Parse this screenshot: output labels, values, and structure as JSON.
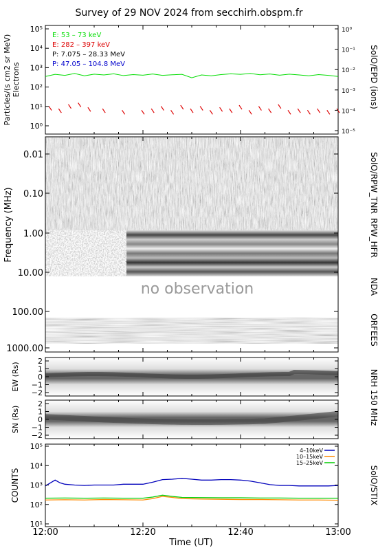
{
  "title": "Survey of 29 NOV 2024 from secchirh.obspm.fr",
  "xaxis": {
    "label": "Time (UT)",
    "ticks": [
      "12:00",
      "12:20",
      "12:40",
      "13:00"
    ],
    "range_minutes": [
      0,
      60
    ]
  },
  "panels": {
    "epd": {
      "left_label_1": "Particles/(s cm2 sr MeV)",
      "left_label_2": "Electrons",
      "right_label": "SolO/EPD (ions)",
      "left_ticks": [
        "10⁰",
        "10¹",
        "10²",
        "10³",
        "10⁴",
        "10⁵"
      ],
      "right_ticks": [
        "10⁻⁵",
        "10⁻⁴",
        "10⁻³",
        "10⁻²",
        "10⁻¹",
        "10⁰"
      ],
      "legend": [
        {
          "text": "E: 53 – 73 keV",
          "color": "#00dd00"
        },
        {
          "text": "E: 282 – 397 keV",
          "color": "#dd0000"
        },
        {
          "text": "P: 7.075 – 28.33 MeV",
          "color": "#000000"
        },
        {
          "text": "P: 47.05 – 104.8 MeV",
          "color": "#0000cc"
        }
      ]
    },
    "spectrogram": {
      "ylabel": "Frequency (MHz)",
      "yticks": [
        "0.01",
        "0.10",
        "1.00",
        "10.00",
        "100.00",
        "1000.00"
      ],
      "instruments": [
        "SolO/RPW_TNR",
        "RPW_HFR",
        "NDA",
        "ORFEES"
      ],
      "no_obs_text": "no observation"
    },
    "nrh": {
      "ew_label": "EW (Rs)",
      "sn_label": "SN (Rs)",
      "yticks": [
        "2",
        "1",
        "0",
        "−1",
        "−2"
      ],
      "right_label": "NRH 150 MHz"
    },
    "stix": {
      "ylabel": "COUNTS",
      "right_label": "SolO/STIX",
      "yticks": [
        "10¹",
        "10²",
        "10³",
        "10⁴",
        "10⁵"
      ],
      "legend": [
        {
          "text": "4–10keV",
          "color": "#0000bb"
        },
        {
          "text": "10–15keV",
          "color": "#ff8800"
        },
        {
          "text": "15–25keV",
          "color": "#00cc00"
        }
      ]
    }
  },
  "chart_data": [
    {
      "type": "line",
      "panel": "SolO/EPD",
      "x_unit": "minutes after 12:00 UT",
      "y_scale": "log",
      "ylim": [
        0.5,
        100000
      ],
      "series": [
        {
          "name": "E: 53 – 73 keV",
          "color": "#00dd00",
          "x": [
            0,
            2,
            4,
            6,
            8,
            10,
            12,
            14,
            16,
            18,
            20,
            22,
            24,
            26,
            28,
            30,
            32,
            34,
            36,
            38,
            40,
            42,
            44,
            46,
            48,
            50,
            52,
            54,
            56,
            58,
            60
          ],
          "y": [
            350,
            450,
            400,
            500,
            380,
            460,
            420,
            480,
            390,
            440,
            410,
            470,
            400,
            430,
            450,
            300,
            420,
            380,
            440,
            480,
            450,
            500,
            430,
            470,
            410,
            460,
            420,
            380,
            440,
            400,
            350
          ]
        },
        {
          "name": "E: 282 – 397 keV",
          "color": "#dd0000",
          "x": [
            1,
            3,
            5,
            7,
            9,
            12,
            16,
            20,
            22,
            24,
            26,
            28,
            30,
            32,
            34,
            36,
            38,
            40,
            42,
            44,
            46,
            48,
            50,
            52,
            54,
            56,
            58,
            60
          ],
          "y": [
            8,
            6,
            10,
            12,
            7,
            6,
            5,
            5,
            6,
            8,
            5,
            9,
            6,
            8,
            5,
            7,
            6,
            9,
            5,
            8,
            6,
            10,
            5,
            6,
            5,
            6,
            5,
            6
          ]
        }
      ]
    },
    {
      "type": "heatmap",
      "panel": "Radio spectrogram",
      "y_scale": "log",
      "ylim_MHz": [
        0.004,
        1000
      ],
      "rows": [
        {
          "instrument": "SolO/RPW_TNR",
          "MHz_range": [
            0.004,
            1
          ]
        },
        {
          "instrument": "RPW_HFR",
          "MHz_range": [
            1,
            10
          ]
        },
        {
          "instrument": "NDA",
          "MHz_range": [
            10,
            60
          ],
          "note": "no observation"
        },
        {
          "instrument": "ORFEES",
          "MHz_range": [
            140,
            1000
          ]
        }
      ]
    },
    {
      "type": "line",
      "panel": "STIX",
      "x_unit": "minutes after 12:00 UT",
      "y_scale": "log",
      "ylim": [
        10,
        100000
      ],
      "series": [
        {
          "name": "4–10keV",
          "color": "#0000bb",
          "x": [
            0,
            2,
            3,
            4,
            6,
            8,
            10,
            12,
            14,
            16,
            18,
            20,
            22,
            24,
            26,
            28,
            30,
            32,
            34,
            36,
            38,
            40,
            42,
            44,
            46,
            48,
            50,
            52,
            54,
            56,
            58,
            60
          ],
          "y": [
            900,
            1800,
            1300,
            1100,
            1000,
            950,
            1000,
            1000,
            1000,
            1100,
            1100,
            1100,
            1400,
            1900,
            2000,
            2200,
            2000,
            1800,
            1800,
            1900,
            1900,
            1800,
            1600,
            1300,
            1050,
            950,
            950,
            900,
            900,
            900,
            900,
            950
          ]
        },
        {
          "name": "10–15keV",
          "color": "#ff8800",
          "x": [
            0,
            4,
            8,
            12,
            16,
            20,
            22,
            24,
            26,
            28,
            32,
            36,
            40,
            44,
            48,
            52,
            56,
            60
          ],
          "y": [
            170,
            175,
            170,
            180,
            175,
            170,
            200,
            260,
            230,
            200,
            190,
            185,
            180,
            180,
            175,
            170,
            170,
            165
          ]
        },
        {
          "name": "15–25keV",
          "color": "#00cc00",
          "x": [
            0,
            4,
            8,
            12,
            16,
            20,
            22,
            24,
            26,
            28,
            32,
            36,
            40,
            44,
            48,
            52,
            56,
            60
          ],
          "y": [
            210,
            215,
            210,
            215,
            210,
            210,
            240,
            300,
            260,
            230,
            225,
            220,
            220,
            215,
            215,
            210,
            210,
            210
          ]
        }
      ]
    }
  ]
}
